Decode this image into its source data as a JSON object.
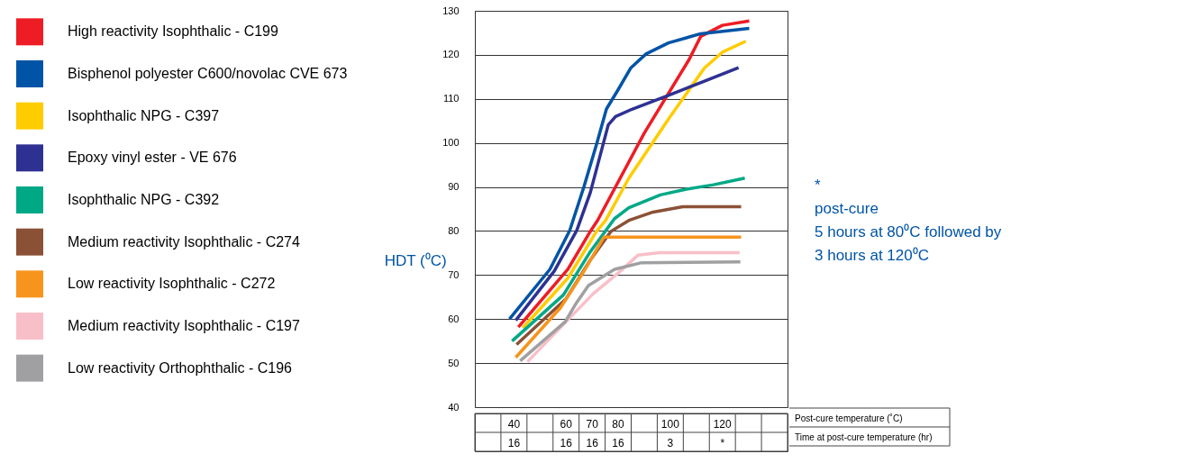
{
  "chart_data": {
    "type": "line",
    "ylabel": "HDT (⁰C)",
    "xlabel": "Post-cure temperature (˚C)",
    "xlim": [
      25,
      145
    ],
    "xticks": [
      40,
      60,
      70,
      80,
      100,
      120
    ],
    "ylim": [
      40,
      130
    ],
    "yticks": [
      40,
      50,
      60,
      70,
      80,
      90,
      100,
      110,
      120,
      130
    ],
    "grid": "y",
    "legend": "left",
    "marker": "none",
    "line_style": "solid",
    "series": [
      {
        "name": "High reactivity Isophthalic - C199",
        "color": "#ee1c25",
        "x": [
          41.7,
          60.7,
          69.3,
          72.1,
          90,
          107.2,
          111.7,
          120,
          130.3
        ],
        "values": [
          58.2,
          71.3,
          79.9,
          82.4,
          102.2,
          118.9,
          124.2,
          126.7,
          127.7
        ]
      },
      {
        "name": "Bisphenol polyester C600/novolac CVE 673",
        "color": "#0054a6",
        "x": [
          38.3,
          53.8,
          61.4,
          66.9,
          71.7,
          75.5,
          79.7,
          84.8,
          90.7,
          99.3,
          111.7,
          130.3
        ],
        "values": [
          60,
          71.3,
          80.1,
          90.1,
          99.7,
          107.7,
          111.8,
          117,
          120.2,
          122.7,
          124.8,
          126
        ]
      },
      {
        "name": "Isophthalic NPG - C397",
        "color": "#ffcc00",
        "x": [
          43.4,
          60.7,
          71.7,
          75.2,
          84.1,
          99.3,
          113.1,
          120,
          129
        ],
        "values": [
          58,
          69.3,
          79.9,
          82.4,
          92,
          105.4,
          117,
          120.6,
          123.1
        ]
      },
      {
        "name": "Epoxy vinyl ester -  VE 676",
        "color": "#2e3192",
        "x": [
          40.7,
          55.5,
          64.1,
          69.3,
          76.2,
          79,
          85.5,
          99.3,
          113.1,
          126.2
        ],
        "values": [
          59.7,
          70.9,
          80.1,
          88.7,
          104.1,
          106,
          107.7,
          110.8,
          114,
          117.1
        ]
      },
      {
        "name": "Isophthalic NPG - C392",
        "color": "#00a886",
        "x": [
          39.3,
          59,
          69.3,
          78.6,
          84.1,
          96.2,
          106.2,
          116.6,
          128.6
        ],
        "values": [
          55,
          65.5,
          75.3,
          82.8,
          85.3,
          88.2,
          89.5,
          90.5,
          92
        ]
      },
      {
        "name": "Medium reactivity Isophthalic - C274",
        "color": "#8b5136",
        "x": [
          41,
          60,
          69.3,
          77.2,
          84.1,
          93.4,
          104.8,
          127.2
        ],
        "values": [
          54.2,
          64.6,
          73.4,
          79.9,
          82.4,
          84.3,
          85.5,
          85.5
        ]
      },
      {
        "name": "Low reactivity Isophthalic - C272",
        "color": "#f7941d",
        "x": [
          40.7,
          57.9,
          66.9,
          74.5,
          78.6,
          127.2
        ],
        "values": [
          51.3,
          62.6,
          70.9,
          78.6,
          78.6,
          78.6
        ]
      },
      {
        "name": "Medium reactivity Isophthalic - C197",
        "color": "#f9bfc8",
        "x": [
          45.2,
          60,
          70.3,
          79.7,
          87.6,
          95.9,
          126.6
        ],
        "values": [
          50.3,
          59.4,
          65.7,
          70.3,
          74.5,
          75.1,
          75.1
        ]
      },
      {
        "name": "Low reactivity Orthophthalic - C196",
        "color": "#a0a0a2",
        "x": [
          42.4,
          59.7,
          64.1,
          68.6,
          78.6,
          89,
          126.9
        ],
        "values": [
          50.5,
          59.4,
          63.8,
          67.6,
          71.3,
          72.8,
          73
        ]
      }
    ],
    "annotations": [
      "*",
      "post-cure",
      "5 hours at 80⁰C followed by",
      "3 hours at 120⁰C",
      "Time at post-cure temperature (hr)",
      "16",
      "16",
      "16",
      "16",
      "3",
      "*"
    ]
  }
}
